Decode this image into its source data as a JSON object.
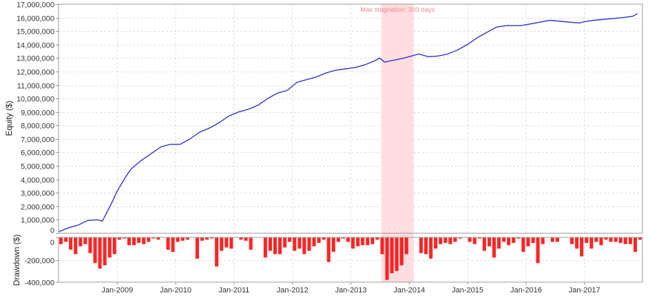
{
  "chart_data": [
    {
      "type": "line",
      "ylabel": "Equity ($)",
      "ylim": [
        0,
        17000000
      ],
      "yticks": [
        0,
        1000000,
        2000000,
        3000000,
        4000000,
        5000000,
        6000000,
        7000000,
        8000000,
        9000000,
        10000000,
        11000000,
        12000000,
        13000000,
        14000000,
        15000000,
        16000000,
        17000000
      ],
      "ytick_labels": [
        "0",
        "1,000,000",
        "2,000,000",
        "3,000,000",
        "4,000,000",
        "5,000,000",
        "6,000,000",
        "7,000,000",
        "8,000,000",
        "9,000,000",
        "10,000,000",
        "11,000,000",
        "12,000,000",
        "13,000,000",
        "14,000,000",
        "15,000,000",
        "16,000,000",
        "17,000,000"
      ],
      "xlim": [
        "2008-01",
        "2018-01"
      ],
      "grid": true,
      "line_color": "#3333cc",
      "annotation": {
        "text": "Max stagnation: 203 days",
        "start": "2013-07-12",
        "end": "2014-01-31",
        "color": "#ffdde0",
        "text_color": "#ee8888"
      },
      "x": [
        "2008-01",
        "2008-03",
        "2008-05",
        "2008-07",
        "2008-09",
        "2008-10",
        "2008-11",
        "2008-12",
        "2009-01",
        "2009-02",
        "2009-03",
        "2009-04",
        "2009-06",
        "2009-08",
        "2009-10",
        "2009-12",
        "2010-02",
        "2010-04",
        "2010-06",
        "2010-08",
        "2010-10",
        "2010-12",
        "2011-02",
        "2011-04",
        "2011-06",
        "2011-08",
        "2011-10",
        "2011-12",
        "2012-02",
        "2012-04",
        "2012-06",
        "2012-08",
        "2012-10",
        "2012-12",
        "2013-02",
        "2013-04",
        "2013-06",
        "2013-07",
        "2013-08",
        "2013-10",
        "2013-12",
        "2014-01",
        "2014-03",
        "2014-05",
        "2014-07",
        "2014-09",
        "2014-11",
        "2015-01",
        "2015-03",
        "2015-05",
        "2015-07",
        "2015-09",
        "2015-12",
        "2016-03",
        "2016-06",
        "2016-09",
        "2016-12",
        "2017-01",
        "2017-03",
        "2017-06",
        "2017-09",
        "2017-11",
        "2017-12"
      ],
      "values": [
        100000,
        400000,
        600000,
        950000,
        1000000,
        900000,
        1600000,
        2300000,
        3100000,
        3700000,
        4300000,
        4800000,
        5400000,
        5900000,
        6400000,
        6600000,
        6600000,
        7000000,
        7500000,
        7800000,
        8200000,
        8700000,
        9000000,
        9200000,
        9500000,
        10000000,
        10400000,
        10600000,
        11200000,
        11400000,
        11600000,
        11900000,
        12100000,
        12200000,
        12300000,
        12500000,
        12800000,
        13000000,
        12700000,
        12850000,
        13000000,
        13100000,
        13300000,
        13100000,
        13150000,
        13300000,
        13600000,
        14000000,
        14500000,
        14900000,
        15300000,
        15400000,
        15400000,
        15600000,
        15800000,
        15700000,
        15600000,
        15700000,
        15800000,
        15900000,
        16000000,
        16100000,
        16300000
      ]
    },
    {
      "type": "bar",
      "ylabel": "Drawdown ($)",
      "ylim": [
        -400000,
        0
      ],
      "yticks": [
        0,
        -200000,
        -400000
      ],
      "ytick_labels": [
        "0",
        "-200,000",
        "-400,000"
      ],
      "xticks": [
        "2009-01",
        "2010-01",
        "2011-01",
        "2012-01",
        "2013-01",
        "2014-01",
        "2015-01",
        "2016-01",
        "2017-01"
      ],
      "xtick_labels": [
        "Jan-2009",
        "Jan-2010",
        "Jan-2011",
        "Jan-2012",
        "Jan-2013",
        "Jan-2014",
        "Jan-2015",
        "Jan-2016",
        "Jan-2017"
      ],
      "grid": true,
      "bar_color": "#ff0000",
      "start": "2008-01",
      "interval": "month",
      "values": [
        -60000,
        -40000,
        -110000,
        -150000,
        -80000,
        -60000,
        -140000,
        -230000,
        -280000,
        -250000,
        -180000,
        -150000,
        -20000,
        -10000,
        -70000,
        -70000,
        -50000,
        -60000,
        -40000,
        -10000,
        -20000,
        0,
        -110000,
        -130000,
        -40000,
        -30000,
        -20000,
        0,
        -190000,
        -30000,
        -20000,
        -10000,
        -260000,
        -120000,
        -90000,
        -100000,
        0,
        -20000,
        -30000,
        -110000,
        0,
        0,
        -180000,
        -120000,
        -150000,
        -150000,
        -90000,
        -40000,
        -120000,
        -100000,
        -150000,
        -120000,
        -80000,
        -50000,
        -20000,
        -220000,
        -130000,
        -40000,
        -10000,
        -40000,
        -100000,
        -80000,
        -70000,
        -70000,
        -60000,
        -20000,
        -150000,
        -380000,
        -320000,
        -300000,
        -250000,
        -150000,
        0,
        0,
        -140000,
        -150000,
        -190000,
        -100000,
        -60000,
        -50000,
        -60000,
        -40000,
        -10000,
        0,
        -40000,
        -60000,
        -10000,
        -120000,
        -80000,
        -180000,
        -100000,
        -40000,
        -70000,
        -50000,
        -10000,
        -130000,
        -80000,
        -50000,
        -230000,
        -60000,
        0,
        -40000,
        -40000,
        0,
        0,
        -60000,
        -100000,
        -170000,
        -50000,
        -100000,
        -40000,
        -70000,
        -20000,
        -40000,
        -40000,
        -50000,
        -60000,
        -60000,
        -130000,
        -20000
      ]
    }
  ]
}
